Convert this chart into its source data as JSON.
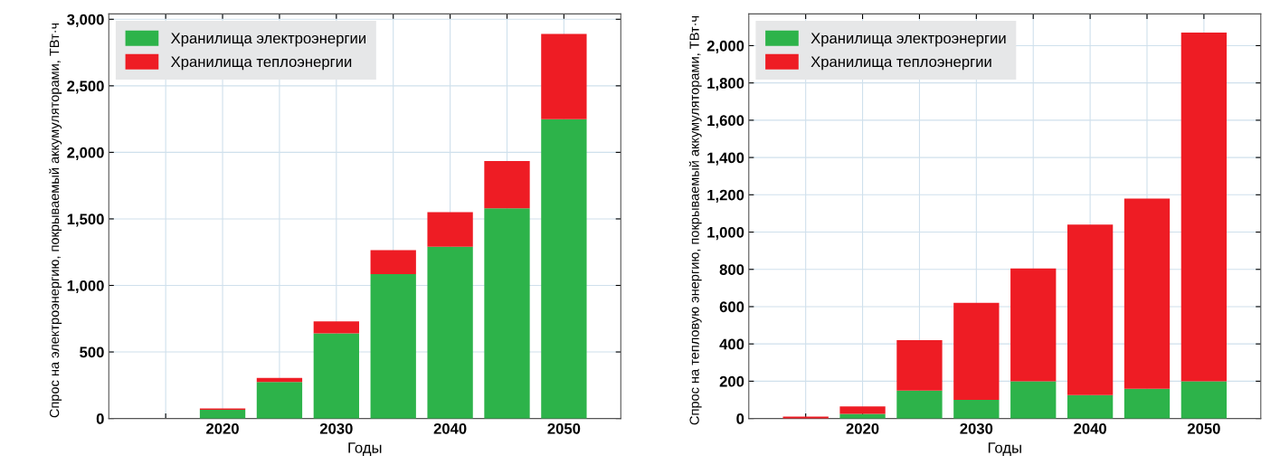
{
  "chart_data": [
    {
      "type": "bar",
      "stacked": true,
      "xlabel": "Годы",
      "ylabel": "Спрос на электроэнергию, покрываемый аккумуляторами, ТВт·ч",
      "x": [
        2020,
        2025,
        2030,
        2035,
        2040,
        2045,
        2050
      ],
      "series": [
        {
          "name": "Хранилища электроэнергии",
          "color": "#2db34a",
          "values": [
            65,
            275,
            640,
            1085,
            1290,
            1580,
            2250
          ]
        },
        {
          "name": "Хранилища теплоэнергии",
          "color": "#ee1c24",
          "values": [
            10,
            30,
            90,
            180,
            260,
            355,
            640
          ]
        }
      ],
      "xlim": [
        2010,
        2055
      ],
      "xticks": [
        {
          "value": 2015,
          "label": null
        },
        2020,
        {
          "value": 2025,
          "label": null
        },
        2030,
        {
          "value": 2035,
          "label": null
        },
        2040,
        {
          "value": 2045,
          "label": null
        },
        2050
      ],
      "ylim": [
        0,
        3040
      ],
      "yticks": [
        {
          "value": 0,
          "label": "0"
        },
        {
          "value": 500,
          "label": "500"
        },
        {
          "value": 1000,
          "label": "1,000"
        },
        {
          "value": 1500,
          "label": "1,500"
        },
        {
          "value": 2000,
          "label": "2,000"
        },
        {
          "value": 2500,
          "label": "2,500"
        },
        {
          "value": 3000,
          "label": "3,000"
        }
      ],
      "grid": true,
      "legend": "top left"
    },
    {
      "type": "bar",
      "stacked": true,
      "xlabel": "Годы",
      "ylabel": "Спрос на тепловую энергию, покрываемый аккумуляторами, ТВт·ч",
      "x": [
        2015,
        2020,
        2025,
        2030,
        2035,
        2040,
        2045,
        2050
      ],
      "series": [
        {
          "name": "Хранилища электроэнергии",
          "color": "#2db34a",
          "values": [
            0,
            25,
            150,
            100,
            200,
            125,
            160,
            200
          ]
        },
        {
          "name": "Хранилища теплоэнергии",
          "color": "#ee1c24",
          "values": [
            10,
            40,
            270,
            520,
            605,
            915,
            1020,
            1870
          ]
        }
      ],
      "xlim": [
        2010,
        2055
      ],
      "xticks": [
        {
          "value": 2015,
          "label": null
        },
        2020,
        {
          "value": 2025,
          "label": null
        },
        2030,
        {
          "value": 2035,
          "label": null
        },
        2040,
        {
          "value": 2045,
          "label": null
        },
        2050
      ],
      "ylim": [
        0,
        2170
      ],
      "yticks": [
        {
          "value": 0,
          "label": "0"
        },
        {
          "value": 200,
          "label": "200"
        },
        {
          "value": 400,
          "label": "400"
        },
        {
          "value": 600,
          "label": "600"
        },
        {
          "value": 800,
          "label": "800"
        },
        {
          "value": 1000,
          "label": "1,000"
        },
        {
          "value": 1200,
          "label": "1,200"
        },
        {
          "value": 1400,
          "label": "1,400"
        },
        {
          "value": 1600,
          "label": "1,600"
        },
        {
          "value": 1800,
          "label": "1,800"
        },
        {
          "value": 2000,
          "label": "2,000"
        }
      ],
      "grid": true,
      "legend": "top left"
    }
  ]
}
